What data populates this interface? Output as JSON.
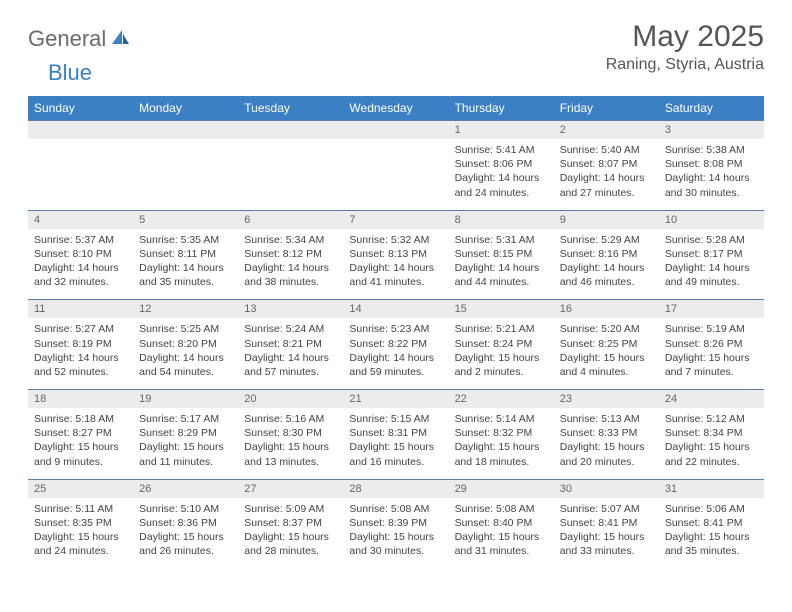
{
  "logo": {
    "general": "General",
    "blue": "Blue"
  },
  "title": "May 2025",
  "location": "Raning, Styria, Austria",
  "colors": {
    "header_bg": "#3b7fc4",
    "header_text": "#ffffff",
    "daynum_bg": "#ececec",
    "daynum_border": "#5a7fa6",
    "text": "#444444",
    "title_color": "#555555"
  },
  "day_headers": [
    "Sunday",
    "Monday",
    "Tuesday",
    "Wednesday",
    "Thursday",
    "Friday",
    "Saturday"
  ],
  "weeks": [
    {
      "nums": [
        "",
        "",
        "",
        "",
        "1",
        "2",
        "3"
      ],
      "cells": [
        null,
        null,
        null,
        null,
        {
          "sunrise": "5:41 AM",
          "sunset": "8:06 PM",
          "daylight": "14 hours and 24 minutes."
        },
        {
          "sunrise": "5:40 AM",
          "sunset": "8:07 PM",
          "daylight": "14 hours and 27 minutes."
        },
        {
          "sunrise": "5:38 AM",
          "sunset": "8:08 PM",
          "daylight": "14 hours and 30 minutes."
        }
      ]
    },
    {
      "nums": [
        "4",
        "5",
        "6",
        "7",
        "8",
        "9",
        "10"
      ],
      "cells": [
        {
          "sunrise": "5:37 AM",
          "sunset": "8:10 PM",
          "daylight": "14 hours and 32 minutes."
        },
        {
          "sunrise": "5:35 AM",
          "sunset": "8:11 PM",
          "daylight": "14 hours and 35 minutes."
        },
        {
          "sunrise": "5:34 AM",
          "sunset": "8:12 PM",
          "daylight": "14 hours and 38 minutes."
        },
        {
          "sunrise": "5:32 AM",
          "sunset": "8:13 PM",
          "daylight": "14 hours and 41 minutes."
        },
        {
          "sunrise": "5:31 AM",
          "sunset": "8:15 PM",
          "daylight": "14 hours and 44 minutes."
        },
        {
          "sunrise": "5:29 AM",
          "sunset": "8:16 PM",
          "daylight": "14 hours and 46 minutes."
        },
        {
          "sunrise": "5:28 AM",
          "sunset": "8:17 PM",
          "daylight": "14 hours and 49 minutes."
        }
      ]
    },
    {
      "nums": [
        "11",
        "12",
        "13",
        "14",
        "15",
        "16",
        "17"
      ],
      "cells": [
        {
          "sunrise": "5:27 AM",
          "sunset": "8:19 PM",
          "daylight": "14 hours and 52 minutes."
        },
        {
          "sunrise": "5:25 AM",
          "sunset": "8:20 PM",
          "daylight": "14 hours and 54 minutes."
        },
        {
          "sunrise": "5:24 AM",
          "sunset": "8:21 PM",
          "daylight": "14 hours and 57 minutes."
        },
        {
          "sunrise": "5:23 AM",
          "sunset": "8:22 PM",
          "daylight": "14 hours and 59 minutes."
        },
        {
          "sunrise": "5:21 AM",
          "sunset": "8:24 PM",
          "daylight": "15 hours and 2 minutes."
        },
        {
          "sunrise": "5:20 AM",
          "sunset": "8:25 PM",
          "daylight": "15 hours and 4 minutes."
        },
        {
          "sunrise": "5:19 AM",
          "sunset": "8:26 PM",
          "daylight": "15 hours and 7 minutes."
        }
      ]
    },
    {
      "nums": [
        "18",
        "19",
        "20",
        "21",
        "22",
        "23",
        "24"
      ],
      "cells": [
        {
          "sunrise": "5:18 AM",
          "sunset": "8:27 PM",
          "daylight": "15 hours and 9 minutes."
        },
        {
          "sunrise": "5:17 AM",
          "sunset": "8:29 PM",
          "daylight": "15 hours and 11 minutes."
        },
        {
          "sunrise": "5:16 AM",
          "sunset": "8:30 PM",
          "daylight": "15 hours and 13 minutes."
        },
        {
          "sunrise": "5:15 AM",
          "sunset": "8:31 PM",
          "daylight": "15 hours and 16 minutes."
        },
        {
          "sunrise": "5:14 AM",
          "sunset": "8:32 PM",
          "daylight": "15 hours and 18 minutes."
        },
        {
          "sunrise": "5:13 AM",
          "sunset": "8:33 PM",
          "daylight": "15 hours and 20 minutes."
        },
        {
          "sunrise": "5:12 AM",
          "sunset": "8:34 PM",
          "daylight": "15 hours and 22 minutes."
        }
      ]
    },
    {
      "nums": [
        "25",
        "26",
        "27",
        "28",
        "29",
        "30",
        "31"
      ],
      "cells": [
        {
          "sunrise": "5:11 AM",
          "sunset": "8:35 PM",
          "daylight": "15 hours and 24 minutes."
        },
        {
          "sunrise": "5:10 AM",
          "sunset": "8:36 PM",
          "daylight": "15 hours and 26 minutes."
        },
        {
          "sunrise": "5:09 AM",
          "sunset": "8:37 PM",
          "daylight": "15 hours and 28 minutes."
        },
        {
          "sunrise": "5:08 AM",
          "sunset": "8:39 PM",
          "daylight": "15 hours and 30 minutes."
        },
        {
          "sunrise": "5:08 AM",
          "sunset": "8:40 PM",
          "daylight": "15 hours and 31 minutes."
        },
        {
          "sunrise": "5:07 AM",
          "sunset": "8:41 PM",
          "daylight": "15 hours and 33 minutes."
        },
        {
          "sunrise": "5:06 AM",
          "sunset": "8:41 PM",
          "daylight": "15 hours and 35 minutes."
        }
      ]
    }
  ],
  "labels": {
    "sunrise": "Sunrise: ",
    "sunset": "Sunset: ",
    "daylight": "Daylight: "
  }
}
